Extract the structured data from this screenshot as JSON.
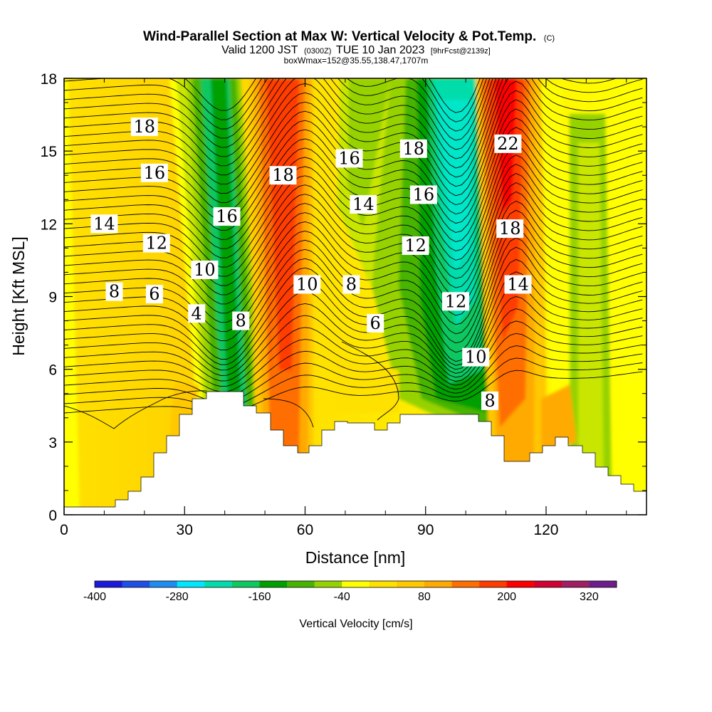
{
  "chart_data": {
    "type": "heatmap",
    "title": {
      "main": "Wind-Parallel Section at Max W: Vertical Velocity & Pot.Temp.",
      "copyright": "(C)",
      "line2_valid": "Valid 1200 JST",
      "line2_utc": "(0300Z)",
      "line2_date": "TUE 10 Jan 2023",
      "line2_fcst": "[9hrFcst@2139z]",
      "line3": "boxWmax=152@35.55,138.47,1707m"
    },
    "xlabel": "Distance [nm]",
    "ylabel": "Height [Kft MSL]",
    "xlim": [
      0,
      145
    ],
    "ylim": [
      0,
      18
    ],
    "x_ticks": [
      "0",
      "30",
      "60",
      "90",
      "120"
    ],
    "y_ticks": [
      "0",
      "3",
      "6",
      "9",
      "12",
      "15",
      "18"
    ],
    "colorbar": {
      "label": "Vertical Velocity [cm/s]",
      "tick_labels": [
        "-400",
        "-280",
        "-160",
        "-40",
        "80",
        "200",
        "320"
      ],
      "colors": [
        "#1a1adc",
        "#1e50e6",
        "#1e8cf0",
        "#00e6ff",
        "#00dcaa",
        "#10c860",
        "#00a000",
        "#46b400",
        "#96d200",
        "#ffff00",
        "#ffe100",
        "#ffc800",
        "#ffaa00",
        "#ff6e00",
        "#ff3c00",
        "#ff0000",
        "#d20032",
        "#a01e64",
        "#6e1e8c"
      ]
    },
    "theta_contour_labels": [
      {
        "text": "18",
        "x": 20,
        "y": 16.0
      },
      {
        "text": "16",
        "x": 22.5,
        "y": 14.1
      },
      {
        "text": "14",
        "x": 10,
        "y": 12.0
      },
      {
        "text": "12",
        "x": 23,
        "y": 11.2
      },
      {
        "text": "10",
        "x": 35,
        "y": 10.1
      },
      {
        "text": "8",
        "x": 12.5,
        "y": 9.2
      },
      {
        "text": "6",
        "x": 22.5,
        "y": 9.1
      },
      {
        "text": "4",
        "x": 33,
        "y": 8.3
      },
      {
        "text": "16",
        "x": 40.5,
        "y": 12.3
      },
      {
        "text": "8",
        "x": 44,
        "y": 8.0
      },
      {
        "text": "18",
        "x": 54.5,
        "y": 14.0
      },
      {
        "text": "10",
        "x": 60.5,
        "y": 9.5
      },
      {
        "text": "16",
        "x": 71,
        "y": 14.7
      },
      {
        "text": "14",
        "x": 74.5,
        "y": 12.8
      },
      {
        "text": "8",
        "x": 71.5,
        "y": 9.5
      },
      {
        "text": "6",
        "x": 77.5,
        "y": 7.9
      },
      {
        "text": "18",
        "x": 87,
        "y": 15.1
      },
      {
        "text": "16",
        "x": 89.5,
        "y": 13.2
      },
      {
        "text": "12",
        "x": 87.5,
        "y": 11.1
      },
      {
        "text": "12",
        "x": 97.5,
        "y": 8.8
      },
      {
        "text": "10",
        "x": 102.5,
        "y": 6.5
      },
      {
        "text": "8",
        "x": 106,
        "y": 4.7
      },
      {
        "text": "22",
        "x": 110.5,
        "y": 15.3
      },
      {
        "text": "18",
        "x": 111,
        "y": 11.8
      },
      {
        "text": "14",
        "x": 113,
        "y": 9.5
      }
    ]
  }
}
